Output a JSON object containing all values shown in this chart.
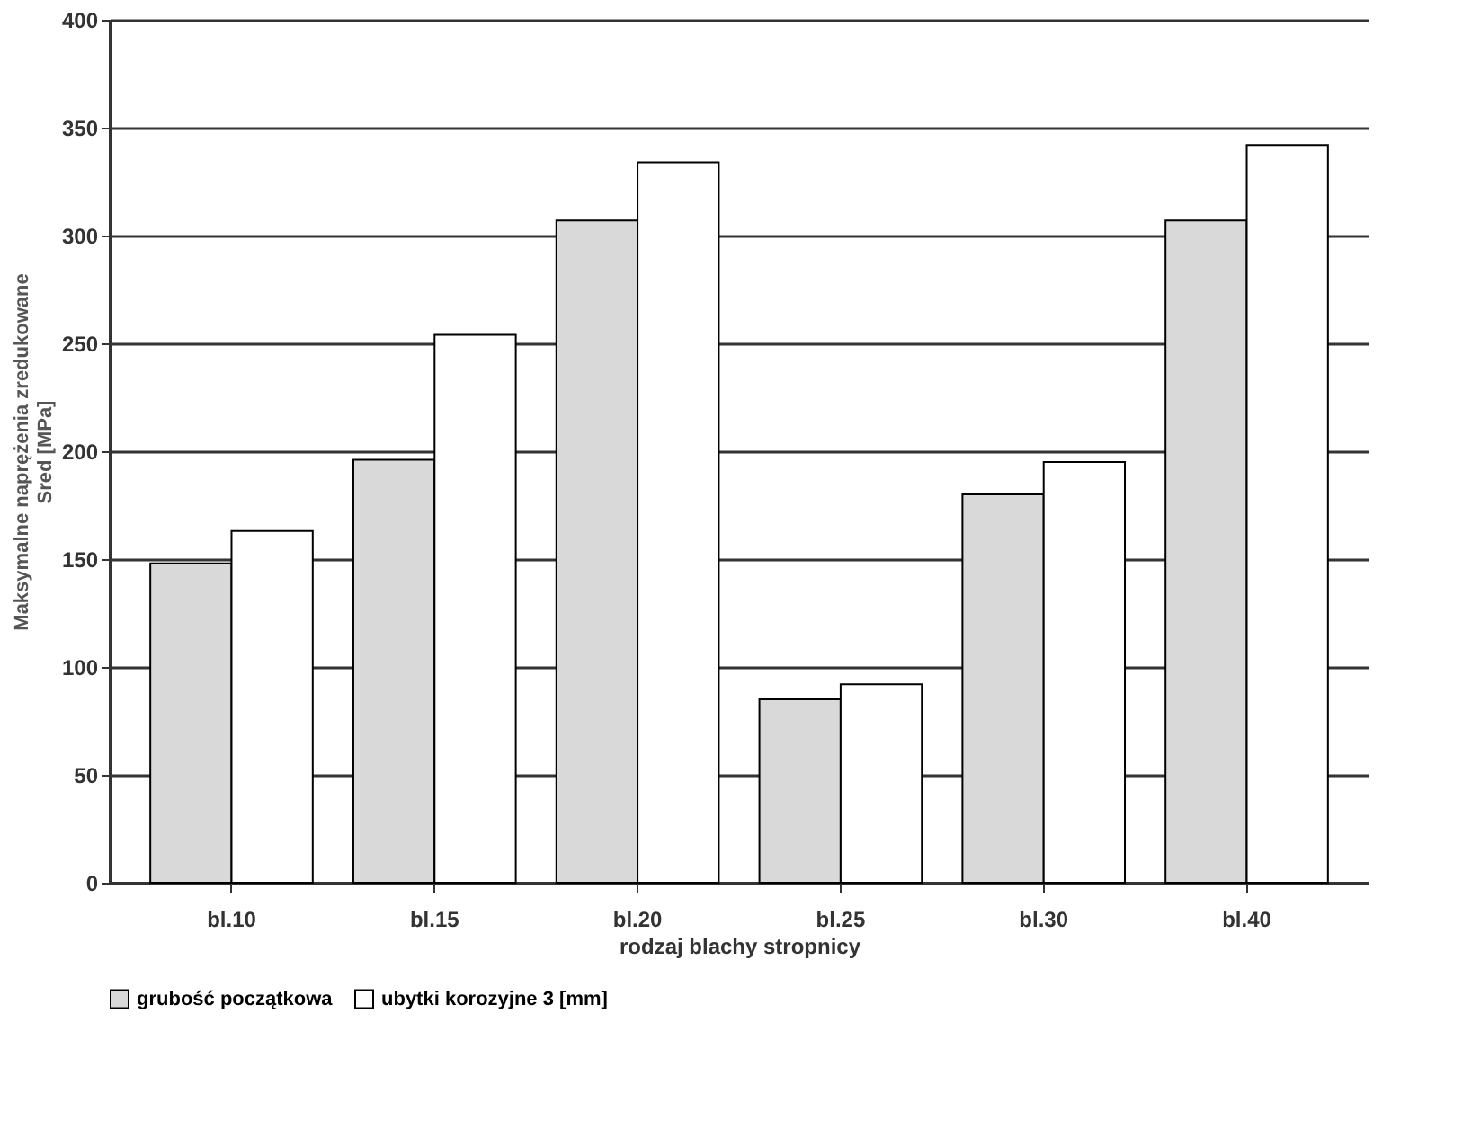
{
  "chart_data": {
    "type": "bar",
    "xlabel": "rodzaj blachy stropnicy",
    "ylabel": "Maksymalne naprężenia zredukowane\nSred  [MPa]",
    "categories": [
      "bl.10",
      "bl.15",
      "bl.20",
      "bl.25",
      "bl.30",
      "bl.40"
    ],
    "series": [
      {
        "name": "grubość początkowa",
        "color": "#d9d9d9",
        "values": [
          148,
          196,
          307,
          85,
          180,
          307
        ]
      },
      {
        "name": "ubytki korozyjne 3 [mm]",
        "color": "#ffffff",
        "values": [
          163,
          254,
          334,
          92,
          195,
          342
        ]
      }
    ],
    "ylim": [
      0,
      400
    ],
    "yticks": [
      0,
      50,
      100,
      150,
      200,
      250,
      300,
      350,
      400
    ],
    "grid": "y",
    "legend": "bottom"
  }
}
